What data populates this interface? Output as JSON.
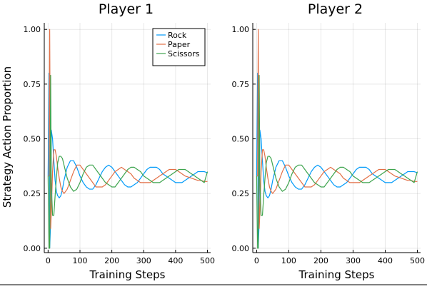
{
  "figure": {
    "ylabel": "Strategy Action Proportion",
    "bottom_rule_color": "#000000"
  },
  "chart_data": [
    {
      "type": "line",
      "title": "Player 1",
      "xlabel": "Training Steps",
      "ylabel": "Strategy Action Proportion",
      "xlim": [
        -12,
        510
      ],
      "ylim": [
        -0.02,
        1.03
      ],
      "xticks": [
        0,
        100,
        200,
        300,
        400,
        500
      ],
      "yticks": [
        0.0,
        0.25,
        0.5,
        0.75,
        1.0
      ],
      "xtick_labels": [
        "0",
        "100",
        "200",
        "300",
        "400",
        "500"
      ],
      "ytick_labels": [
        "0.00",
        "0.25",
        "0.50",
        "0.75",
        "1.00"
      ],
      "grid": true,
      "legend": {
        "placement": "top-right",
        "entries": [
          "Rock",
          "Paper",
          "Scissors"
        ]
      },
      "series": [
        {
          "name": "Rock",
          "color": "#009af9",
          "x": [
            0,
            3,
            5,
            8,
            10,
            14,
            18,
            22,
            26,
            30,
            35,
            40,
            45,
            50,
            60,
            70,
            80,
            90,
            100,
            110,
            120,
            130,
            140,
            150,
            160,
            170,
            180,
            190,
            200,
            210,
            220,
            230,
            240,
            250,
            260,
            270,
            280,
            290,
            300,
            310,
            320,
            330,
            340,
            350,
            360,
            370,
            380,
            390,
            400,
            410,
            420,
            430,
            440,
            450,
            460,
            470,
            480,
            490,
            500
          ],
          "y": [
            0.33,
            0.8,
            0.0,
            0.12,
            0.54,
            0.5,
            0.4,
            0.31,
            0.26,
            0.24,
            0.23,
            0.24,
            0.27,
            0.31,
            0.37,
            0.4,
            0.4,
            0.37,
            0.33,
            0.3,
            0.28,
            0.27,
            0.27,
            0.29,
            0.32,
            0.35,
            0.37,
            0.38,
            0.37,
            0.35,
            0.33,
            0.31,
            0.29,
            0.28,
            0.28,
            0.29,
            0.3,
            0.32,
            0.34,
            0.36,
            0.37,
            0.37,
            0.37,
            0.36,
            0.34,
            0.33,
            0.32,
            0.31,
            0.3,
            0.3,
            0.3,
            0.31,
            0.32,
            0.33,
            0.34,
            0.35,
            0.35,
            0.35,
            0.345
          ]
        },
        {
          "name": "Paper",
          "color": "#e26f46",
          "x": [
            0,
            3,
            5,
            8,
            10,
            14,
            18,
            22,
            26,
            30,
            35,
            40,
            45,
            50,
            60,
            70,
            80,
            90,
            100,
            110,
            120,
            130,
            140,
            150,
            160,
            170,
            180,
            190,
            200,
            210,
            220,
            230,
            240,
            250,
            260,
            270,
            280,
            290,
            300,
            310,
            320,
            330,
            340,
            350,
            360,
            370,
            380,
            390,
            400,
            410,
            420,
            430,
            440,
            450,
            460,
            470,
            480,
            490,
            500
          ],
          "y": [
            0.33,
            0.33,
            1.0,
            0.09,
            0.16,
            0.35,
            0.45,
            0.45,
            0.42,
            0.37,
            0.32,
            0.28,
            0.26,
            0.25,
            0.27,
            0.31,
            0.35,
            0.38,
            0.38,
            0.36,
            0.34,
            0.32,
            0.3,
            0.28,
            0.28,
            0.28,
            0.29,
            0.31,
            0.33,
            0.35,
            0.36,
            0.37,
            0.36,
            0.35,
            0.34,
            0.32,
            0.31,
            0.3,
            0.3,
            0.3,
            0.3,
            0.31,
            0.32,
            0.33,
            0.34,
            0.35,
            0.36,
            0.36,
            0.36,
            0.35,
            0.34,
            0.33,
            0.325,
            0.32,
            0.315,
            0.31,
            0.31,
            0.305,
            0.305
          ]
        },
        {
          "name": "Scissors",
          "color": "#3ea44e",
          "x": [
            0,
            3,
            5,
            8,
            10,
            14,
            18,
            22,
            26,
            30,
            35,
            40,
            45,
            50,
            60,
            70,
            80,
            90,
            100,
            110,
            120,
            130,
            140,
            150,
            160,
            170,
            180,
            190,
            200,
            210,
            220,
            230,
            240,
            250,
            260,
            270,
            280,
            290,
            300,
            310,
            320,
            330,
            340,
            350,
            360,
            370,
            380,
            390,
            400,
            410,
            420,
            430,
            440,
            450,
            460,
            470,
            480,
            490,
            500
          ],
          "y": [
            0.33,
            0.0,
            0.0,
            0.79,
            0.3,
            0.15,
            0.15,
            0.24,
            0.32,
            0.39,
            0.42,
            0.42,
            0.41,
            0.38,
            0.32,
            0.28,
            0.26,
            0.27,
            0.3,
            0.34,
            0.37,
            0.38,
            0.38,
            0.36,
            0.34,
            0.32,
            0.3,
            0.29,
            0.28,
            0.28,
            0.3,
            0.32,
            0.34,
            0.36,
            0.37,
            0.37,
            0.36,
            0.35,
            0.33,
            0.32,
            0.31,
            0.3,
            0.3,
            0.3,
            0.31,
            0.32,
            0.33,
            0.34,
            0.35,
            0.36,
            0.36,
            0.36,
            0.35,
            0.34,
            0.33,
            0.32,
            0.31,
            0.3,
            0.35
          ]
        }
      ]
    },
    {
      "type": "line",
      "title": "Player 2",
      "xlabel": "Training Steps",
      "ylabel": "",
      "xlim": [
        -12,
        510
      ],
      "ylim": [
        -0.02,
        1.03
      ],
      "xticks": [
        0,
        100,
        200,
        300,
        400,
        500
      ],
      "yticks": [
        0.0,
        0.25,
        0.5,
        0.75,
        1.0
      ],
      "xtick_labels": [
        "0",
        "100",
        "200",
        "300",
        "400",
        "500"
      ],
      "ytick_labels": [
        "0.00",
        "0.25",
        "0.50",
        "0.75",
        "1.00"
      ],
      "grid": true,
      "legend": null,
      "series": [
        {
          "name": "Rock",
          "color": "#009af9",
          "x": [
            0,
            3,
            5,
            8,
            10,
            14,
            18,
            22,
            26,
            30,
            35,
            40,
            45,
            50,
            60,
            70,
            80,
            90,
            100,
            110,
            120,
            130,
            140,
            150,
            160,
            170,
            180,
            190,
            200,
            210,
            220,
            230,
            240,
            250,
            260,
            270,
            280,
            290,
            300,
            310,
            320,
            330,
            340,
            350,
            360,
            370,
            380,
            390,
            400,
            410,
            420,
            430,
            440,
            450,
            460,
            470,
            480,
            490,
            500
          ],
          "y": [
            0.33,
            0.8,
            0.0,
            0.12,
            0.54,
            0.5,
            0.4,
            0.31,
            0.26,
            0.24,
            0.23,
            0.24,
            0.27,
            0.31,
            0.37,
            0.4,
            0.4,
            0.37,
            0.33,
            0.3,
            0.28,
            0.27,
            0.27,
            0.29,
            0.32,
            0.35,
            0.37,
            0.38,
            0.37,
            0.35,
            0.33,
            0.31,
            0.29,
            0.28,
            0.28,
            0.29,
            0.3,
            0.32,
            0.34,
            0.36,
            0.37,
            0.37,
            0.37,
            0.36,
            0.34,
            0.33,
            0.32,
            0.31,
            0.3,
            0.3,
            0.3,
            0.31,
            0.32,
            0.33,
            0.34,
            0.35,
            0.35,
            0.35,
            0.345
          ]
        },
        {
          "name": "Paper",
          "color": "#e26f46",
          "x": [
            0,
            3,
            5,
            8,
            10,
            14,
            18,
            22,
            26,
            30,
            35,
            40,
            45,
            50,
            60,
            70,
            80,
            90,
            100,
            110,
            120,
            130,
            140,
            150,
            160,
            170,
            180,
            190,
            200,
            210,
            220,
            230,
            240,
            250,
            260,
            270,
            280,
            290,
            300,
            310,
            320,
            330,
            340,
            350,
            360,
            370,
            380,
            390,
            400,
            410,
            420,
            430,
            440,
            450,
            460,
            470,
            480,
            490,
            500
          ],
          "y": [
            0.33,
            0.33,
            1.0,
            0.09,
            0.16,
            0.35,
            0.45,
            0.45,
            0.42,
            0.37,
            0.32,
            0.28,
            0.26,
            0.25,
            0.27,
            0.31,
            0.35,
            0.38,
            0.38,
            0.36,
            0.34,
            0.32,
            0.3,
            0.28,
            0.28,
            0.28,
            0.29,
            0.31,
            0.33,
            0.35,
            0.36,
            0.37,
            0.36,
            0.35,
            0.34,
            0.32,
            0.31,
            0.3,
            0.3,
            0.3,
            0.3,
            0.31,
            0.32,
            0.33,
            0.34,
            0.35,
            0.36,
            0.36,
            0.36,
            0.35,
            0.34,
            0.33,
            0.325,
            0.32,
            0.315,
            0.31,
            0.31,
            0.305,
            0.305
          ]
        },
        {
          "name": "Scissors",
          "color": "#3ea44e",
          "x": [
            0,
            3,
            5,
            8,
            10,
            14,
            18,
            22,
            26,
            30,
            35,
            40,
            45,
            50,
            60,
            70,
            80,
            90,
            100,
            110,
            120,
            130,
            140,
            150,
            160,
            170,
            180,
            190,
            200,
            210,
            220,
            230,
            240,
            250,
            260,
            270,
            280,
            290,
            300,
            310,
            320,
            330,
            340,
            350,
            360,
            370,
            380,
            390,
            400,
            410,
            420,
            430,
            440,
            450,
            460,
            470,
            480,
            490,
            500
          ],
          "y": [
            0.33,
            0.0,
            0.0,
            0.79,
            0.3,
            0.15,
            0.15,
            0.24,
            0.32,
            0.39,
            0.42,
            0.42,
            0.41,
            0.38,
            0.32,
            0.28,
            0.26,
            0.27,
            0.3,
            0.34,
            0.37,
            0.38,
            0.38,
            0.36,
            0.34,
            0.32,
            0.3,
            0.29,
            0.28,
            0.28,
            0.3,
            0.32,
            0.34,
            0.36,
            0.37,
            0.37,
            0.36,
            0.35,
            0.33,
            0.32,
            0.31,
            0.3,
            0.3,
            0.3,
            0.31,
            0.32,
            0.33,
            0.34,
            0.35,
            0.36,
            0.36,
            0.36,
            0.35,
            0.34,
            0.33,
            0.32,
            0.31,
            0.3,
            0.35
          ]
        }
      ]
    }
  ]
}
